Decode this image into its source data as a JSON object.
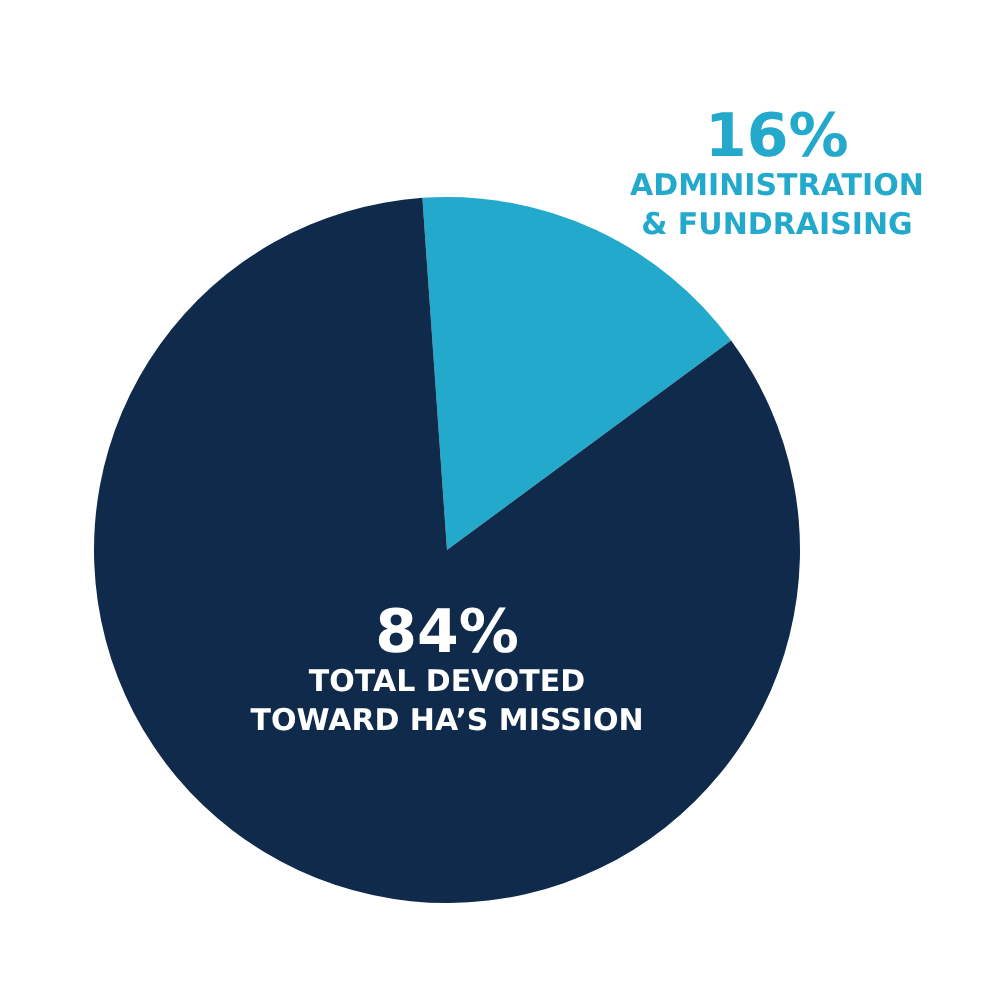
{
  "chart_data": {
    "type": "pie",
    "categories": [
      "ADMINISTRATION\n& FUNDRAISING",
      "TOTAL DEVOTED\nTOWARD HA’S MISSION"
    ],
    "values": [
      16,
      84
    ],
    "colors": [
      "#22a9cc",
      "#0f2a4a"
    ],
    "value_labels": [
      "16%",
      "84%"
    ],
    "legend": false
  }
}
